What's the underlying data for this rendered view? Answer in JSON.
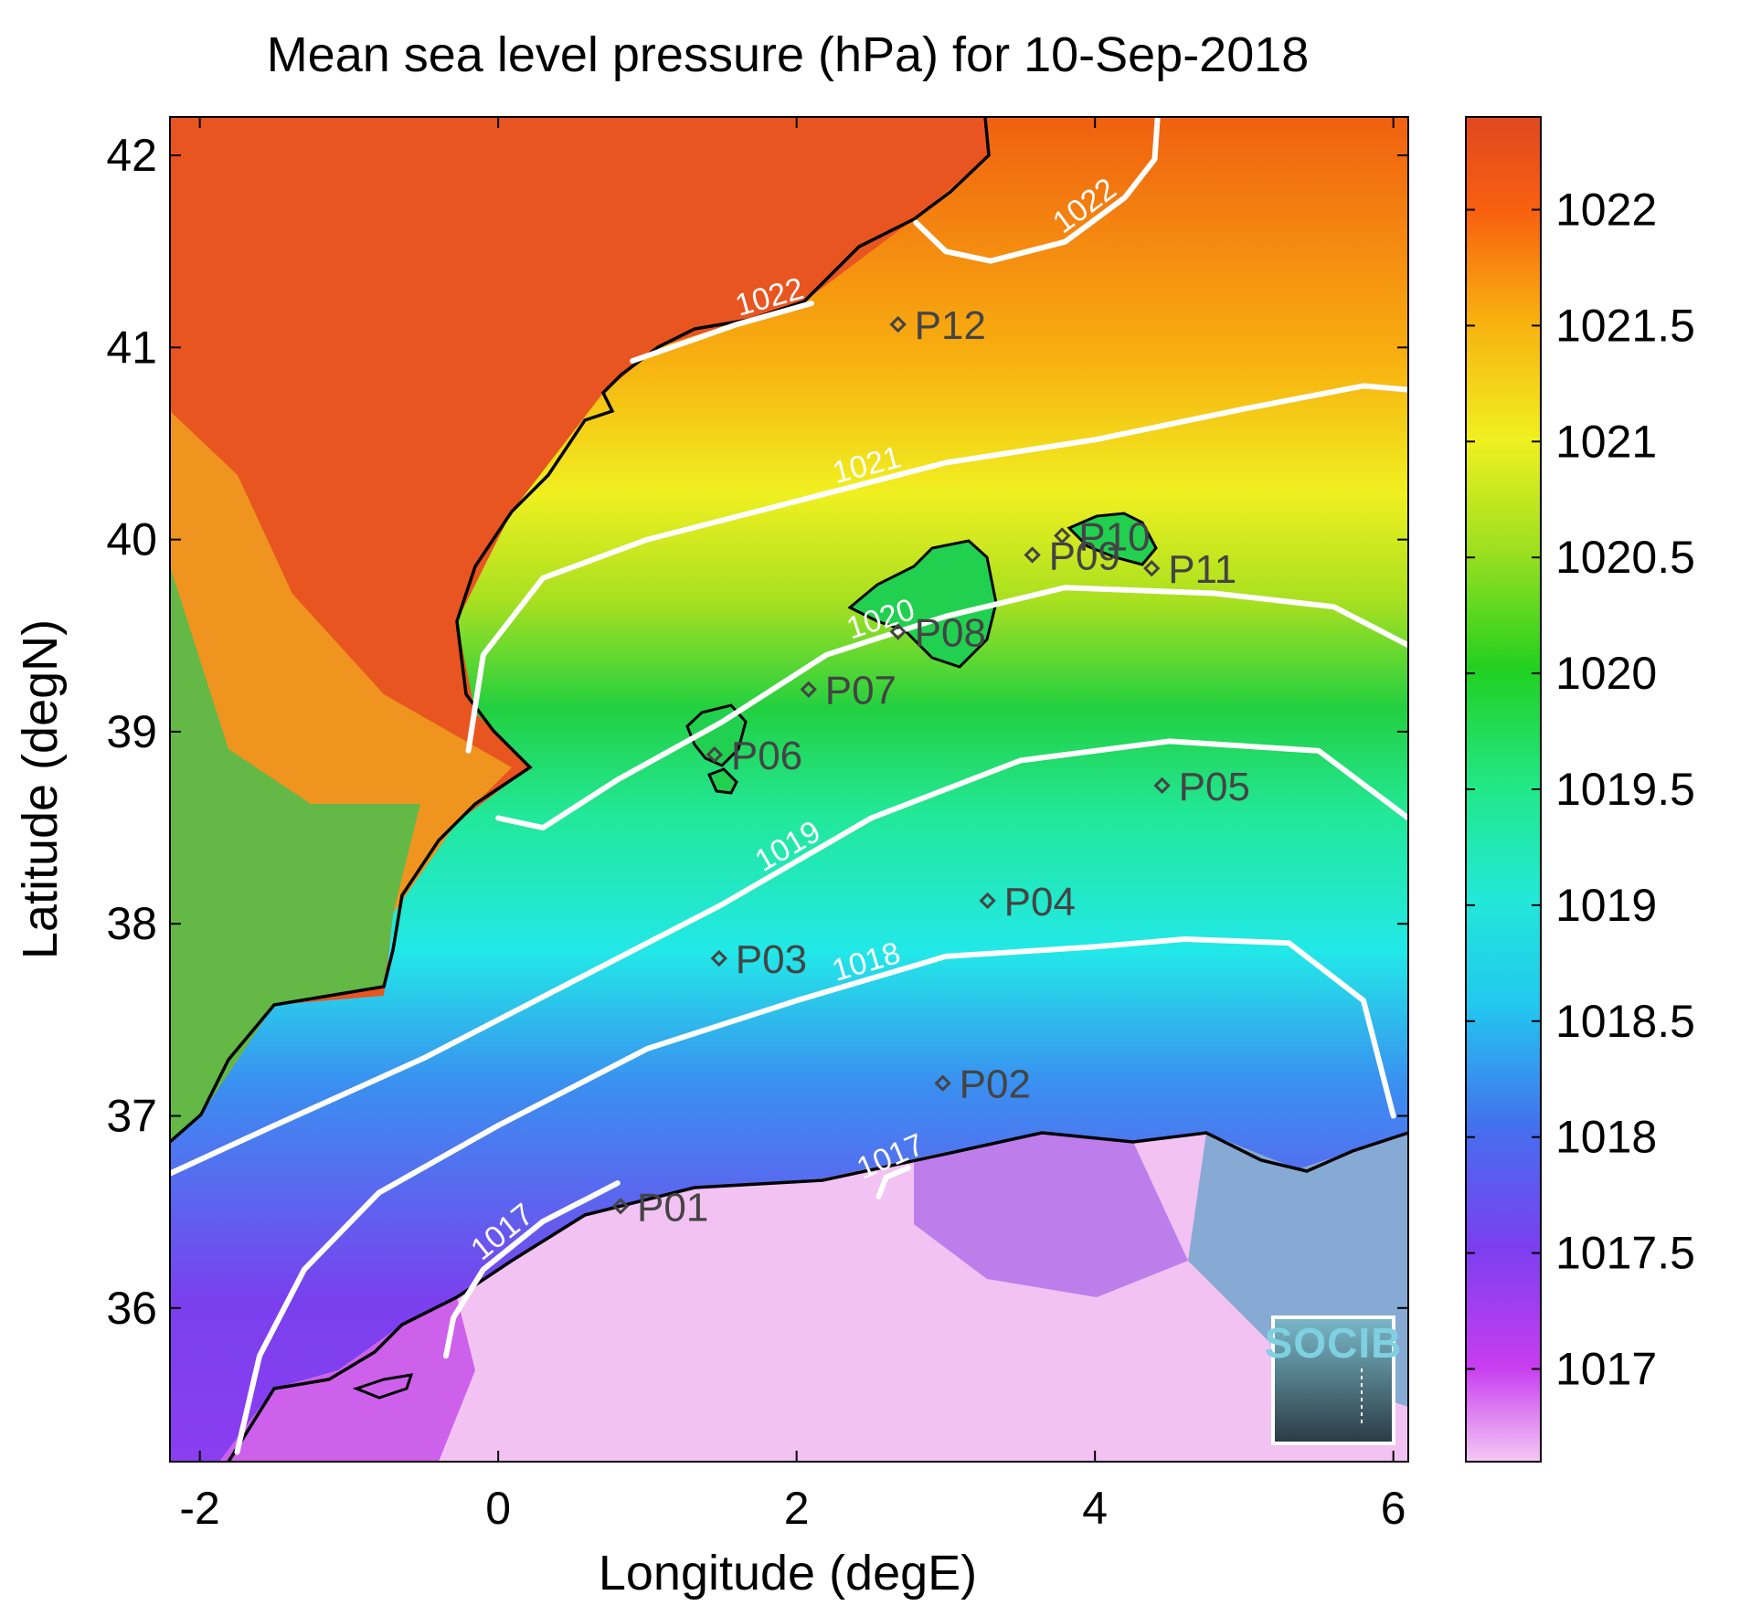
{
  "chart_data": {
    "type": "heatmap",
    "title": "Mean sea level pressure (hPa) for 10-Sep-2018",
    "xlabel": "Longitude (degE)",
    "ylabel": "Latitude (degN)",
    "xlim": [
      -2.2,
      6.1
    ],
    "ylim": [
      35.2,
      42.2
    ],
    "x_ticks": [
      -2,
      0,
      2,
      4,
      6
    ],
    "x_tick_labels": [
      "-2",
      "0",
      "2",
      "4",
      "6"
    ],
    "y_ticks": [
      36,
      37,
      38,
      39,
      40,
      41,
      42
    ],
    "y_tick_labels": [
      "36",
      "37",
      "38",
      "39",
      "40",
      "41",
      "42"
    ],
    "colorbar": {
      "range": [
        1016.6,
        1022.4
      ],
      "ticks": [
        1017,
        1017.5,
        1018,
        1018.5,
        1019,
        1019.5,
        1020,
        1020.5,
        1021,
        1021.5,
        1022
      ],
      "tick_labels": [
        "1017",
        "1017.5",
        "1018",
        "1018.5",
        "1019",
        "1019.5",
        "1020",
        "1020.5",
        "1021",
        "1021.5",
        "1022"
      ],
      "colors": [
        "#f2c4f2",
        "#c23ef0",
        "#7b3ff0",
        "#3a8ff0",
        "#22e8e8",
        "#22e8a0",
        "#22d830",
        "#a0e020",
        "#f0f020",
        "#f8b010",
        "#f86010",
        "#e85020"
      ]
    },
    "contours": [
      {
        "label": "1017",
        "lon": [
          -0.35,
          -0.3,
          -0.1,
          0.3,
          0.8
        ],
        "lat": [
          35.75,
          35.95,
          36.2,
          36.45,
          36.65
        ]
      },
      {
        "label": "1017",
        "lon": [
          2.55,
          2.6,
          2.75
        ],
        "lat": [
          36.58,
          36.68,
          36.73
        ]
      },
      {
        "label": "1018",
        "lon": [
          -1.75,
          -1.6,
          -1.3,
          -0.8,
          0,
          1,
          2,
          3,
          4,
          4.6,
          5.3,
          5.8,
          6.0
        ],
        "lat": [
          35.25,
          35.75,
          36.2,
          36.6,
          36.95,
          37.35,
          37.6,
          37.83,
          37.88,
          37.92,
          37.9,
          37.6,
          37.0
        ]
      },
      {
        "label": "1019",
        "lon": [
          -2.2,
          -1.5,
          -0.5,
          0.5,
          1.5,
          2.5,
          3.5,
          4.5,
          5.5,
          6.1
        ],
        "lat": [
          36.7,
          36.95,
          37.3,
          37.7,
          38.1,
          38.55,
          38.85,
          38.95,
          38.9,
          38.55
        ]
      },
      {
        "label": "1020",
        "lon": [
          0,
          0.3,
          0.8,
          1.5,
          2.2,
          3,
          3.8,
          4.8,
          5.6,
          6.1
        ],
        "lat": [
          38.55,
          38.5,
          38.75,
          39.05,
          39.4,
          39.6,
          39.75,
          39.72,
          39.65,
          39.45
        ]
      },
      {
        "label": "1021",
        "lon": [
          -0.2,
          -0.1,
          0.3,
          1,
          2,
          3,
          4,
          5,
          5.8,
          6.1
        ],
        "lat": [
          38.9,
          39.4,
          39.8,
          40.0,
          40.2,
          40.4,
          40.52,
          40.68,
          40.8,
          40.78
        ]
      },
      {
        "label": "1022",
        "lon": [
          0.9,
          1.6,
          2.1
        ],
        "lat": [
          40.93,
          41.12,
          41.23
        ]
      },
      {
        "label": "1022",
        "lon": [
          2.8,
          3.0,
          3.3,
          3.8,
          4.2,
          4.4,
          4.42
        ],
        "lat": [
          41.65,
          41.5,
          41.45,
          41.55,
          41.78,
          41.98,
          42.2
        ]
      }
    ],
    "points": [
      {
        "name": "P01",
        "lon": 0.82,
        "lat": 36.53
      },
      {
        "name": "P02",
        "lon": 2.98,
        "lat": 37.17
      },
      {
        "name": "P03",
        "lon": 1.48,
        "lat": 37.82
      },
      {
        "name": "P04",
        "lon": 3.28,
        "lat": 38.12
      },
      {
        "name": "P05",
        "lon": 4.45,
        "lat": 38.72
      },
      {
        "name": "P06",
        "lon": 1.45,
        "lat": 38.88
      },
      {
        "name": "P07",
        "lon": 2.08,
        "lat": 39.22
      },
      {
        "name": "P08",
        "lon": 2.68,
        "lat": 39.52
      },
      {
        "name": "P09",
        "lon": 3.58,
        "lat": 39.92
      },
      {
        "name": "P10",
        "lon": 3.78,
        "lat": 40.02
      },
      {
        "name": "P11",
        "lon": 4.38,
        "lat": 39.85
      },
      {
        "name": "P12",
        "lon": 2.68,
        "lat": 41.12
      }
    ]
  },
  "logo": {
    "text": "SOCIB"
  }
}
